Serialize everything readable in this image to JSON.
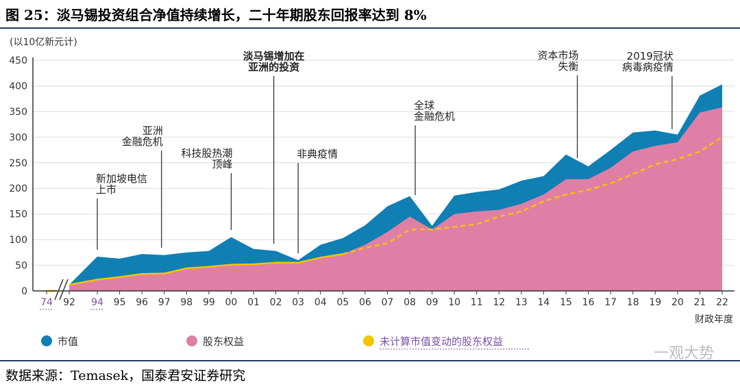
{
  "title": "图 25：淡马锡投资组合净值持续增长，二十年期股东回报率达到 8%",
  "source": "数据来源：Temasek，国泰君安证券研究",
  "watermark": "一观大势",
  "chart_data": {
    "type": "area",
    "ylabel": "(以10亿新元计)",
    "xlabel": "财政年度",
    "ylim": [
      0,
      450
    ],
    "yticks": [
      0,
      50,
      100,
      150,
      200,
      250,
      300,
      350,
      400,
      450
    ],
    "grid": true,
    "legend_placement": "bottom",
    "categories": [
      "74",
      "92",
      "94",
      "95",
      "96",
      "97",
      "98",
      "99",
      "00",
      "01",
      "02",
      "03",
      "04",
      "05",
      "06",
      "07",
      "08",
      "09",
      "10",
      "11",
      "12",
      "13",
      "14",
      "15",
      "16",
      "17",
      "18",
      "19",
      "20",
      "21",
      "22"
    ],
    "highlighted_categories": [
      "74",
      "94"
    ],
    "axis_break_after": "74",
    "series": [
      {
        "name": "市值",
        "color": "#0f7fb4",
        "values": [
          0,
          12,
          67,
          63,
          72,
          70,
          75,
          78,
          105,
          82,
          78,
          60,
          90,
          103,
          128,
          165,
          185,
          127,
          186,
          193,
          198,
          215,
          224,
          266,
          243,
          275,
          309,
          313,
          305,
          381,
          403
        ]
      },
      {
        "name": "股东权益",
        "color": "#e07fa6",
        "values": [
          0,
          12,
          22,
          27,
          33,
          34,
          44,
          47,
          51,
          52,
          55,
          55,
          65,
          72,
          90,
          115,
          145,
          120,
          150,
          155,
          158,
          170,
          188,
          218,
          218,
          240,
          272,
          283,
          290,
          348,
          358
        ]
      },
      {
        "name": "未计算市值变动的股东权益",
        "color": "#f2c500",
        "style": "dashed",
        "values": [
          0,
          12,
          22,
          27,
          33,
          34,
          44,
          47,
          51,
          52,
          55,
          55,
          65,
          72,
          84,
          93,
          120,
          120,
          125,
          130,
          145,
          155,
          175,
          188,
          197,
          210,
          228,
          247,
          257,
          272,
          300
        ]
      }
    ],
    "annotations": [
      {
        "text": [
          "新加坡电信",
          "上市"
        ],
        "at": "94"
      },
      {
        "text": [
          "亚洲",
          "金融危机"
        ],
        "at": "97"
      },
      {
        "text": [
          "科技股热潮",
          "顶峰"
        ],
        "at": "00"
      },
      {
        "text": [
          "淡马锡增加在",
          "亚洲的投资"
        ],
        "at": "02",
        "bold": true
      },
      {
        "text": [
          "非典疫情"
        ],
        "at": "03"
      },
      {
        "text": [
          "全球",
          "金融危机"
        ],
        "at": "08"
      },
      {
        "text": [
          "资本市场",
          "失衡"
        ],
        "at": "16"
      },
      {
        "text": [
          "2019冠状",
          "病毒病疫情"
        ],
        "at": "20"
      }
    ]
  }
}
